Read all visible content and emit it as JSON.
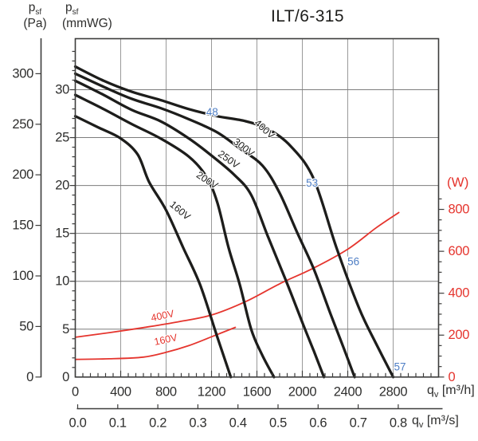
{
  "colors": {
    "pressure_curve": "#1d1d1b",
    "power_curve": "#e5352e",
    "noise_label": "#4d7dc4",
    "grid_vertical": "#9a9a9a",
    "grid_horizontal": "#7d7d7d",
    "axis": "#3d3d3c",
    "text": "#2e2e2d"
  },
  "axis_headers": {
    "pressure_symbol": "p",
    "pressure_symbol_sub": "sf",
    "pa_unit": "(Pa)",
    "mmwg_unit": "(mmWG)",
    "watt_unit": "(W)",
    "flow_symbol": "q",
    "flow_symbol_sub": "v",
    "flow_unit_hourly": "[m³/h]",
    "flow_unit_seconds": "[m³/s]"
  },
  "chart_data": {
    "type": "line",
    "title": "ILT/6-315",
    "axes": {
      "x_flow_m3h": {
        "label": "qv [m³/h]",
        "ticks": [
          0,
          400,
          800,
          1200,
          1600,
          2000,
          2400,
          2800
        ],
        "range": [
          0,
          3200
        ],
        "minor_divisions_per_major": 6
      },
      "x_flow_m3s": {
        "label": "qv [m³/s]",
        "ticks": [
          "0.0",
          "0.1",
          "0.2",
          "0.3",
          "0.4",
          "0.5",
          "0.6",
          "0.7",
          "0.8"
        ]
      },
      "y_pressure_pa": {
        "label": "psf (Pa)",
        "ticks": [
          0,
          50,
          100,
          150,
          200,
          250,
          300
        ],
        "range": [
          0,
          334
        ]
      },
      "y_pressure_mmwg": {
        "label": "psf (mmWG)",
        "ticks": [
          0,
          5,
          10,
          15,
          20,
          25,
          30
        ],
        "minor_step": 1,
        "minor_max": 34,
        "gridlines": true
      },
      "y_power_w": {
        "label": "(W)",
        "ticks": [
          0,
          200,
          400,
          600,
          800
        ],
        "minor_step": 50,
        "minor_max": 850,
        "range": [
          0,
          1615
        ]
      }
    },
    "pressure_curves_pa_vs_m3h": [
      {
        "name": "400V",
        "points": [
          [
            0,
            307
          ],
          [
            250,
            293
          ],
          [
            500,
            282
          ],
          [
            750,
            274
          ],
          [
            1000,
            265
          ],
          [
            1250,
            258
          ],
          [
            1500,
            253
          ],
          [
            1700,
            245
          ],
          [
            1900,
            228
          ],
          [
            2100,
            196
          ],
          [
            2300,
            128
          ],
          [
            2500,
            68
          ],
          [
            2650,
            33
          ],
          [
            2800,
            0
          ]
        ]
      },
      {
        "name": "300V",
        "points": [
          [
            0,
            300
          ],
          [
            250,
            287
          ],
          [
            500,
            275
          ],
          [
            750,
            266
          ],
          [
            1000,
            255
          ],
          [
            1250,
            242
          ],
          [
            1450,
            226
          ],
          [
            1650,
            209
          ],
          [
            1800,
            182
          ],
          [
            1950,
            144
          ],
          [
            2100,
            107
          ],
          [
            2250,
            62
          ],
          [
            2360,
            30
          ],
          [
            2460,
            0
          ]
        ]
      },
      {
        "name": "250V",
        "points": [
          [
            0,
            293
          ],
          [
            250,
            279
          ],
          [
            500,
            264
          ],
          [
            750,
            253
          ],
          [
            1000,
            236
          ],
          [
            1200,
            219
          ],
          [
            1400,
            200
          ],
          [
            1550,
            180
          ],
          [
            1700,
            138
          ],
          [
            1850,
            97
          ],
          [
            2000,
            54
          ],
          [
            2100,
            26
          ],
          [
            2190,
            0
          ]
        ]
      },
      {
        "name": "200V",
        "points": [
          [
            0,
            279
          ],
          [
            250,
            265
          ],
          [
            500,
            250
          ],
          [
            750,
            236
          ],
          [
            1000,
            218
          ],
          [
            1150,
            199
          ],
          [
            1250,
            173
          ],
          [
            1350,
            128
          ],
          [
            1450,
            91
          ],
          [
            1550,
            47
          ],
          [
            1650,
            21
          ],
          [
            1750,
            0
          ]
        ]
      },
      {
        "name": "160V",
        "points": [
          [
            0,
            258
          ],
          [
            200,
            247
          ],
          [
            400,
            236
          ],
          [
            550,
            220
          ],
          [
            650,
            193
          ],
          [
            800,
            165
          ],
          [
            950,
            128
          ],
          [
            1100,
            91
          ],
          [
            1250,
            40
          ],
          [
            1370,
            0
          ]
        ]
      }
    ],
    "power_curves_w_vs_m3h": [
      {
        "name": "400V",
        "points": [
          [
            0,
            190
          ],
          [
            300,
            212
          ],
          [
            600,
            236
          ],
          [
            900,
            263
          ],
          [
            1200,
            296
          ],
          [
            1500,
            360
          ],
          [
            1800,
            445
          ],
          [
            2100,
            520
          ],
          [
            2400,
            610
          ],
          [
            2650,
            712
          ],
          [
            2850,
            785
          ]
        ]
      },
      {
        "name": "160V",
        "points": [
          [
            0,
            84
          ],
          [
            300,
            87
          ],
          [
            600,
            95
          ],
          [
            800,
            118
          ],
          [
            1000,
            150
          ],
          [
            1200,
            192
          ],
          [
            1410,
            237
          ]
        ]
      }
    ],
    "noise_levels_db": [
      {
        "value": 48,
        "flow_m3h": 1205,
        "pressure_pa": 262
      },
      {
        "value": 53,
        "flow_m3h": 2085,
        "pressure_pa": 192
      },
      {
        "value": 56,
        "flow_m3h": 2450,
        "pressure_pa": 114
      },
      {
        "value": 57,
        "flow_m3h": 2860,
        "pressure_pa": 10
      }
    ]
  }
}
